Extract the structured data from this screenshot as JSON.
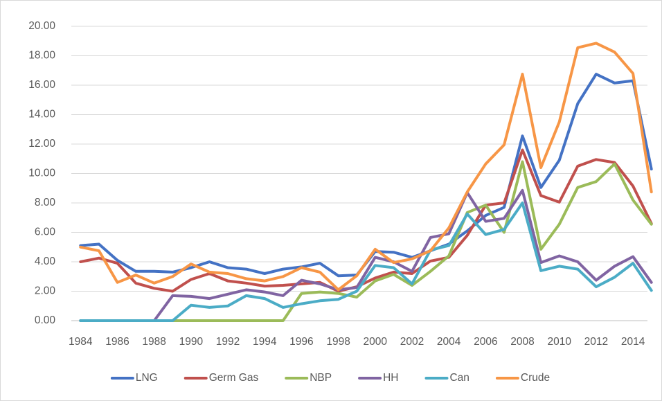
{
  "chart_data": {
    "type": "line",
    "categories": [
      "1984",
      null,
      "1986",
      null,
      "1988",
      null,
      "1990",
      null,
      "1992",
      null,
      "1994",
      null,
      "1996",
      null,
      "1998",
      null,
      "2000",
      null,
      "2002",
      null,
      "2004",
      null,
      "2006",
      null,
      "2008",
      null,
      "2010",
      null,
      "2012",
      null,
      "2014",
      null
    ],
    "series": [
      {
        "name": "LNG",
        "color": "#4472c4",
        "values": [
          5.1,
          5.2,
          4.1,
          3.35,
          3.35,
          3.3,
          3.6,
          4.0,
          3.6,
          3.5,
          3.2,
          3.5,
          3.65,
          3.9,
          3.05,
          3.1,
          4.7,
          4.65,
          4.3,
          4.75,
          5.2,
          6.1,
          7.15,
          7.7,
          12.55,
          9.05,
          10.9,
          14.75,
          16.75,
          16.15,
          16.3,
          10.3
        ]
      },
      {
        "name": "Germ Gas",
        "color": "#c0504d",
        "values": [
          4.0,
          4.25,
          3.9,
          2.55,
          2.2,
          2.0,
          2.8,
          3.2,
          2.7,
          2.55,
          2.35,
          2.4,
          2.5,
          2.6,
          2.0,
          2.3,
          2.9,
          3.3,
          3.2,
          4.05,
          4.3,
          5.8,
          7.85,
          8.0,
          11.6,
          8.5,
          8.05,
          10.5,
          10.95,
          10.75,
          9.15,
          6.6
        ]
      },
      {
        "name": "NBP",
        "color": "#9bbb59",
        "values": [
          0,
          0,
          0,
          0,
          0,
          0,
          0,
          0,
          0,
          0,
          0,
          0,
          1.85,
          1.95,
          1.85,
          1.6,
          2.7,
          3.15,
          2.4,
          3.35,
          4.4,
          7.35,
          7.85,
          6.0,
          10.8,
          4.85,
          6.55,
          9.05,
          9.45,
          10.65,
          8.2,
          6.55
        ]
      },
      {
        "name": "HH",
        "color": "#8064a2",
        "values": [
          0,
          0,
          0,
          0,
          0,
          1.7,
          1.65,
          1.5,
          1.8,
          2.1,
          1.95,
          1.7,
          2.75,
          2.5,
          2.1,
          2.25,
          4.3,
          4.0,
          3.35,
          5.65,
          5.9,
          8.7,
          6.75,
          6.95,
          8.85,
          3.95,
          4.4,
          4.0,
          2.75,
          3.7,
          4.35,
          2.6
        ]
      },
      {
        "name": "Can",
        "color": "#4bacc6",
        "values": [
          0,
          0,
          0,
          0,
          0,
          0,
          1.05,
          0.9,
          1.0,
          1.7,
          1.5,
          0.9,
          1.15,
          1.35,
          1.45,
          2.0,
          3.75,
          3.6,
          2.5,
          4.8,
          5.1,
          7.25,
          5.85,
          6.2,
          8.0,
          3.4,
          3.7,
          3.5,
          2.3,
          2.95,
          3.9,
          2.05
        ]
      },
      {
        "name": "Crude",
        "color": "#f79646",
        "values": [
          5.0,
          4.75,
          2.6,
          3.1,
          2.55,
          3.0,
          3.85,
          3.3,
          3.2,
          2.85,
          2.7,
          3.0,
          3.6,
          3.3,
          2.1,
          3.05,
          4.85,
          3.95,
          4.2,
          4.75,
          6.3,
          8.75,
          10.65,
          11.95,
          16.75,
          10.4,
          13.5,
          18.55,
          18.85,
          18.25,
          16.8,
          8.75
        ]
      }
    ],
    "ylim": [
      0,
      20
    ],
    "yticks": [
      {
        "value": 0,
        "label": "0.00"
      },
      {
        "value": 2,
        "label": "2.00"
      },
      {
        "value": 4,
        "label": "4.00"
      },
      {
        "value": 6,
        "label": "6.00"
      },
      {
        "value": 8,
        "label": "8.00"
      },
      {
        "value": 10,
        "label": "10.00"
      },
      {
        "value": 12,
        "label": "12.00"
      },
      {
        "value": 14,
        "label": "14.00"
      },
      {
        "value": 16,
        "label": "16.00"
      },
      {
        "value": 18,
        "label": "18.00"
      },
      {
        "value": 20,
        "label": "20.00"
      }
    ],
    "grid": true,
    "legend": "bottom"
  }
}
